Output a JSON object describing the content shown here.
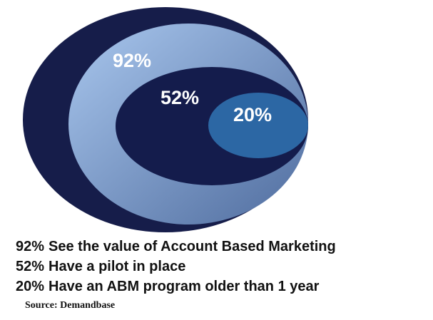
{
  "chart_data": {
    "type": "nested-ellipse",
    "categories": [
      "See the value of  Account Based Marketing",
      "Have a pilot in place",
      "Have an ABM program older than 1 year"
    ],
    "values": [
      92,
      52,
      20
    ],
    "value_labels": [
      "92%",
      "52%",
      "20%"
    ],
    "colors": [
      "#7fa6d8",
      "#141c4c",
      "#2c67a4"
    ],
    "source": "Source: Demandbase"
  }
}
